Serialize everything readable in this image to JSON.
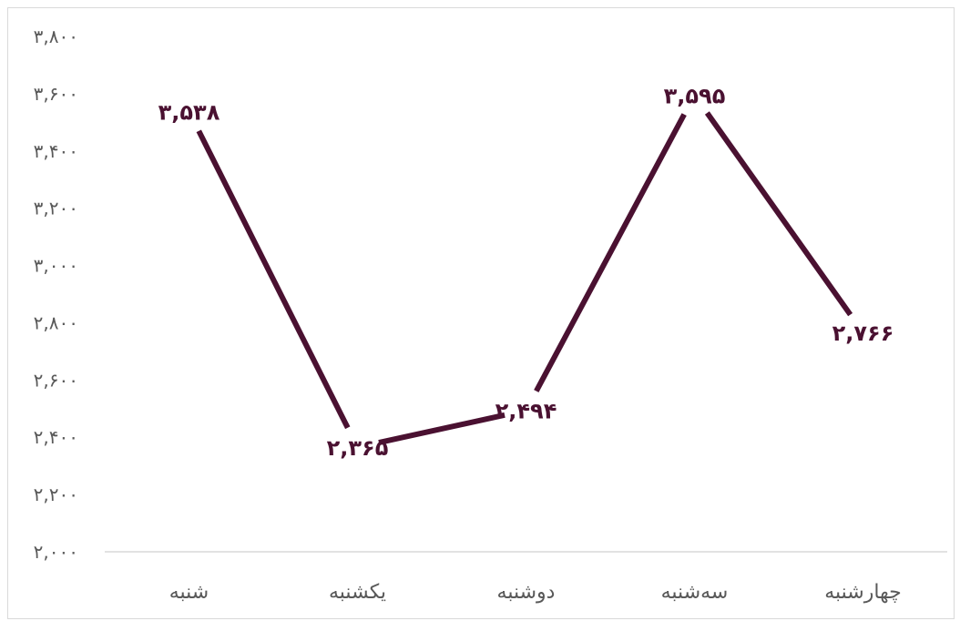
{
  "chart_data": {
    "type": "line",
    "title": "",
    "xlabel": "",
    "ylabel": "",
    "categories": [
      "شنبه",
      "یکشنبه",
      "دوشنبه",
      "سه‌شنبه",
      "چهارشنبه"
    ],
    "series": [
      {
        "values": [
          3538,
          2365,
          2494,
          3595,
          2766
        ],
        "value_labels": [
          "۳,۵۳۸",
          "۲,۳۶۵",
          "۲,۴۹۴",
          "۳,۵۹۵",
          "۲,۷۶۶"
        ],
        "color": "#4a1131"
      }
    ],
    "ylim": [
      2000,
      3800
    ],
    "yticks": [
      2000,
      2200,
      2400,
      2600,
      2800,
      3000,
      3200,
      3400,
      3600,
      3800
    ],
    "ytick_labels": [
      "۲,۰۰۰",
      "۲,۲۰۰",
      "۲,۴۰۰",
      "۲,۶۰۰",
      "۲,۸۰۰",
      "۳,۰۰۰",
      "۳,۲۰۰",
      "۳,۴۰۰",
      "۳,۶۰۰",
      "۳,۸۰۰"
    ],
    "grid": false,
    "legend": "none",
    "colors": {
      "line": "#4a1131",
      "axis_text": "#595959",
      "axis_line": "#d9d9d9"
    }
  }
}
